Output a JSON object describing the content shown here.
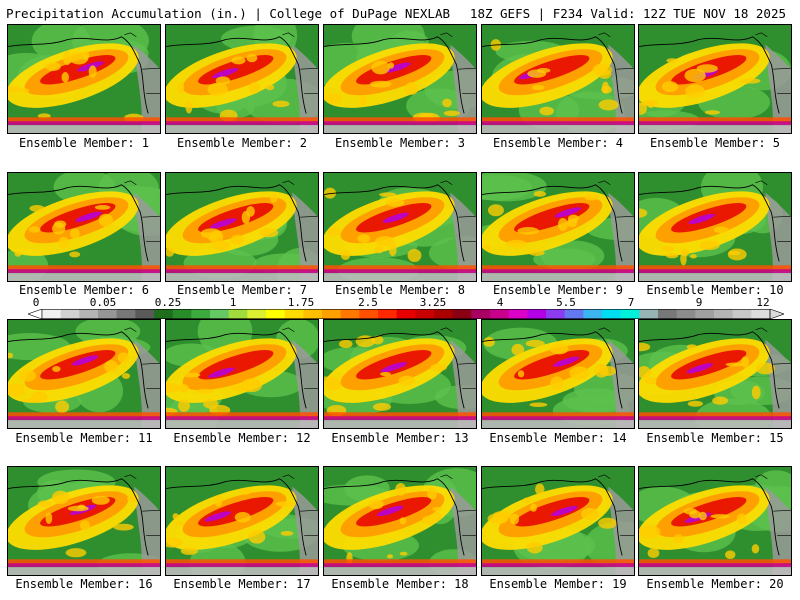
{
  "header": {
    "left": "Precipitation Accumulation (in.) | College of DuPage NEXLAB",
    "right": "18Z GEFS | F234 Valid: 12Z TUE NOV 18 2025"
  },
  "member_label_prefix": "Ensemble Member: ",
  "members": [
    {
      "label": "Ensemble Member: 1"
    },
    {
      "label": "Ensemble Member: 2"
    },
    {
      "label": "Ensemble Member: 3"
    },
    {
      "label": "Ensemble Member: 4"
    },
    {
      "label": "Ensemble Member: 5"
    },
    {
      "label": "Ensemble Member: 6"
    },
    {
      "label": "Ensemble Member: 7"
    },
    {
      "label": "Ensemble Member: 8"
    },
    {
      "label": "Ensemble Member: 9"
    },
    {
      "label": "Ensemble Member: 10"
    },
    {
      "label": "Ensemble Member: 11"
    },
    {
      "label": "Ensemble Member: 12"
    },
    {
      "label": "Ensemble Member: 13"
    },
    {
      "label": "Ensemble Member: 14"
    },
    {
      "label": "Ensemble Member: 15"
    },
    {
      "label": "Ensemble Member: 16"
    },
    {
      "label": "Ensemble Member: 17"
    },
    {
      "label": "Ensemble Member: 18"
    },
    {
      "label": "Ensemble Member: 19"
    },
    {
      "label": "Ensemble Member: 20"
    }
  ],
  "chart_data": {
    "type": "heatmap",
    "title": "Precipitation Accumulation (in.)",
    "model": "18Z GEFS",
    "forecast_hour": "F234",
    "valid": "12Z TUE NOV 18 2025",
    "panels": 20,
    "colorbar": {
      "tick_labels": [
        "0",
        "0.05",
        "0.25",
        "1",
        "1.75",
        "2.5",
        "3.25",
        "4",
        "5.5",
        "7",
        "9",
        "12"
      ],
      "colors": [
        "#f0f0f0",
        "#d2d2d2",
        "#b4b4b4",
        "#969696",
        "#787878",
        "#5a5a5a",
        "#1e6e1e",
        "#288c28",
        "#3caa3c",
        "#64c864",
        "#a0dc3c",
        "#dcf032",
        "#ffff00",
        "#ffdc00",
        "#ffbe00",
        "#ffa000",
        "#ff7800",
        "#ff5000",
        "#ff2800",
        "#e60000",
        "#c80000",
        "#aa0000",
        "#8c0014",
        "#aa0064",
        "#c8008c",
        "#dc00c8",
        "#b400e6",
        "#8c3cf0",
        "#6478f0",
        "#3cb4f0",
        "#00dcf0",
        "#00f0dc",
        "#96b4b4",
        "#787878",
        "#8c8c8c",
        "#a0a0a0",
        "#b4b4b4",
        "#c8c8c8",
        "#dcdcdc"
      ]
    }
  }
}
